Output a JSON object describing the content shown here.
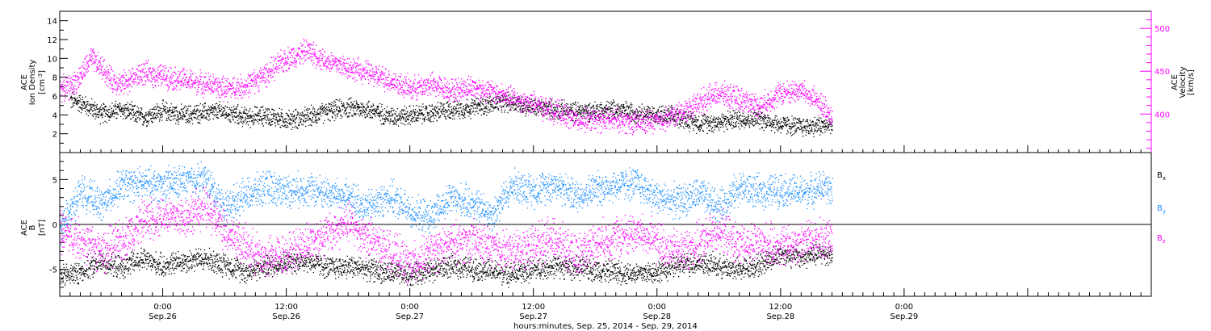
{
  "chart_data": {
    "type": "scatter",
    "xlabel": "hours:minutes, Sep. 25, 2014 - Sep. 29, 2014",
    "xlim_hours_from_Sep25_0000": [
      14,
      120
    ],
    "x_ticks": [
      {
        "time": "0:00",
        "date": "Sep.26",
        "hours": 24
      },
      {
        "time": "12:00",
        "date": "Sep.26",
        "hours": 36
      },
      {
        "time": "0:00",
        "date": "Sep.27",
        "hours": 48
      },
      {
        "time": "12:00",
        "date": "Sep.27",
        "hours": 60
      },
      {
        "time": "0:00",
        "date": "Sep.28",
        "hours": 72
      },
      {
        "time": "12:00",
        "date": "Sep.28",
        "hours": 84
      },
      {
        "time": "0:00",
        "date": "Sep.29",
        "hours": 96
      }
    ],
    "x_tick_positions_hours": [
      24,
      36,
      48,
      60,
      72,
      84,
      96,
      108,
      120
    ],
    "panels": [
      {
        "name": "top",
        "left_axis": {
          "label_lines": [
            "ACE",
            "Ion Density"
          ],
          "unit": "[cm",
          "unit_sup": "-3",
          "unit_end": "]",
          "ylim": [
            0,
            15
          ],
          "ticks": [
            "2",
            "4",
            "6",
            "8",
            "10",
            "12",
            "14"
          ],
          "color": "#000000"
        },
        "right_axis": {
          "label_lines": [
            "ACE",
            "Velocity",
            "[km/s]"
          ],
          "ylim": [
            355,
            520
          ],
          "ticks": [
            "400",
            "450",
            "500"
          ],
          "color": "#ff00ff"
        },
        "series": [
          {
            "color": "#000000",
            "axis": "left",
            "points_hours": [
              [
                15,
                5.6
              ],
              [
                16,
                5.3
              ],
              [
                18,
                4.2
              ],
              [
                20,
                4.6
              ],
              [
                22,
                3.8
              ],
              [
                24,
                4.5
              ],
              [
                26,
                4.0
              ],
              [
                28,
                4.3
              ],
              [
                30,
                4.4
              ],
              [
                32,
                3.8
              ],
              [
                34,
                4.0
              ],
              [
                36,
                3.5
              ],
              [
                38,
                3.8
              ],
              [
                40,
                4.4
              ],
              [
                42,
                4.8
              ],
              [
                44,
                4.6
              ],
              [
                46,
                3.9
              ],
              [
                48,
                4.0
              ],
              [
                50,
                4.2
              ],
              [
                52,
                4.6
              ],
              [
                54,
                4.8
              ],
              [
                56,
                5.2
              ],
              [
                58,
                5.4
              ],
              [
                60,
                4.8
              ],
              [
                62,
                4.6
              ],
              [
                64,
                4.4
              ],
              [
                66,
                4.5
              ],
              [
                68,
                4.6
              ],
              [
                70,
                4.3
              ],
              [
                72,
                4.0
              ],
              [
                74,
                3.8
              ],
              [
                76,
                3.2
              ],
              [
                78,
                3.3
              ],
              [
                80,
                3.6
              ],
              [
                82,
                3.6
              ],
              [
                84,
                3.0
              ],
              [
                86,
                2.8
              ],
              [
                88,
                2.9
              ],
              [
                89,
                3.0
              ]
            ]
          },
          {
            "color": "#ff00ff",
            "axis": "right",
            "points_hours": [
              [
                14,
                430
              ],
              [
                15,
                432
              ],
              [
                16,
                445
              ],
              [
                17,
                465
              ],
              [
                18,
                455
              ],
              [
                19,
                440
              ],
              [
                20,
                436
              ],
              [
                22,
                448
              ],
              [
                24,
                445
              ],
              [
                26,
                440
              ],
              [
                28,
                436
              ],
              [
                30,
                430
              ],
              [
                32,
                433
              ],
              [
                34,
                447
              ],
              [
                36,
                465
              ],
              [
                38,
                475
              ],
              [
                40,
                462
              ],
              [
                42,
                455
              ],
              [
                44,
                448
              ],
              [
                46,
                440
              ],
              [
                48,
                430
              ],
              [
                50,
                435
              ],
              [
                52,
                428
              ],
              [
                54,
                432
              ],
              [
                56,
                426
              ],
              [
                58,
                418
              ],
              [
                60,
                412
              ],
              [
                62,
                404
              ],
              [
                64,
                394
              ],
              [
                66,
                393
              ],
              [
                68,
                394
              ],
              [
                70,
                390
              ],
              [
                72,
                392
              ],
              [
                74,
                400
              ],
              [
                76,
                414
              ],
              [
                78,
                425
              ],
              [
                80,
                418
              ],
              [
                82,
                410
              ],
              [
                84,
                425
              ],
              [
                86,
                428
              ],
              [
                88,
                410
              ],
              [
                89,
                398
              ]
            ]
          }
        ]
      },
      {
        "name": "bottom",
        "left_axis": {
          "label_lines": [
            "ACE",
            "B"
          ],
          "unit": "[nT]",
          "ylim": [
            -8,
            8
          ],
          "ticks": [
            "-5",
            "0",
            "5"
          ],
          "zero_line": true,
          "color": "#000000"
        },
        "legend": [
          {
            "label": "B",
            "sub": "x",
            "color": "#000000"
          },
          {
            "label": "B",
            "sub": "y",
            "color": "#1e90ff"
          },
          {
            "label": "B",
            "sub": "z",
            "color": "#ff00ff"
          }
        ],
        "series": [
          {
            "name": "Bx",
            "color": "#000000",
            "points_hours": [
              [
                14,
                -5.8
              ],
              [
                16,
                -5.2
              ],
              [
                18,
                -4.2
              ],
              [
                20,
                -4.8
              ],
              [
                22,
                -3.8
              ],
              [
                24,
                -4.6
              ],
              [
                26,
                -4.0
              ],
              [
                28,
                -3.8
              ],
              [
                30,
                -4.4
              ],
              [
                32,
                -5.2
              ],
              [
                34,
                -4.6
              ],
              [
                36,
                -4.2
              ],
              [
                38,
                -4.0
              ],
              [
                40,
                -4.8
              ],
              [
                42,
                -4.6
              ],
              [
                44,
                -4.9
              ],
              [
                46,
                -5.4
              ],
              [
                48,
                -5.6
              ],
              [
                50,
                -5.0
              ],
              [
                52,
                -4.6
              ],
              [
                54,
                -4.8
              ],
              [
                56,
                -5.2
              ],
              [
                58,
                -5.5
              ],
              [
                60,
                -5.0
              ],
              [
                62,
                -4.6
              ],
              [
                64,
                -4.8
              ],
              [
                66,
                -5.0
              ],
              [
                68,
                -5.2
              ],
              [
                70,
                -5.4
              ],
              [
                72,
                -5.2
              ],
              [
                74,
                -4.5
              ],
              [
                76,
                -4.2
              ],
              [
                78,
                -4.6
              ],
              [
                80,
                -5.0
              ],
              [
                82,
                -4.4
              ],
              [
                84,
                -3.2
              ],
              [
                86,
                -3.6
              ],
              [
                88,
                -3.2
              ],
              [
                89,
                -3.4
              ]
            ]
          },
          {
            "name": "By",
            "color": "#1e90ff",
            "points_hours": [
              [
                14,
                -0.5
              ],
              [
                15,
                1.5
              ],
              [
                16,
                3.8
              ],
              [
                18,
                2.2
              ],
              [
                20,
                4.4
              ],
              [
                22,
                4.6
              ],
              [
                24,
                4.5
              ],
              [
                26,
                4.8
              ],
              [
                28,
                5.2
              ],
              [
                30,
                2.0
              ],
              [
                32,
                3.2
              ],
              [
                34,
                4.2
              ],
              [
                36,
                3.8
              ],
              [
                38,
                4.0
              ],
              [
                40,
                3.6
              ],
              [
                42,
                3.0
              ],
              [
                44,
                2.0
              ],
              [
                46,
                3.2
              ],
              [
                48,
                1.4
              ],
              [
                50,
                0.8
              ],
              [
                52,
                3.0
              ],
              [
                54,
                2.4
              ],
              [
                56,
                1.2
              ],
              [
                58,
                4.4
              ],
              [
                60,
                3.8
              ],
              [
                62,
                4.6
              ],
              [
                64,
                3.2
              ],
              [
                66,
                4.0
              ],
              [
                68,
                4.4
              ],
              [
                70,
                4.6
              ],
              [
                72,
                3.0
              ],
              [
                74,
                2.6
              ],
              [
                76,
                3.4
              ],
              [
                78,
                2.0
              ],
              [
                80,
                4.2
              ],
              [
                82,
                3.6
              ],
              [
                84,
                4.0
              ],
              [
                86,
                3.6
              ],
              [
                88,
                4.2
              ],
              [
                89,
                3.8
              ]
            ]
          },
          {
            "name": "Bz",
            "color": "#ff00ff",
            "points_hours": [
              [
                14,
                -0.8
              ],
              [
                16,
                -1.6
              ],
              [
                18,
                -3.0
              ],
              [
                20,
                -1.8
              ],
              [
                22,
                0.5
              ],
              [
                24,
                1.2
              ],
              [
                26,
                0.8
              ],
              [
                28,
                2.0
              ],
              [
                30,
                -0.5
              ],
              [
                32,
                -2.5
              ],
              [
                34,
                -3.8
              ],
              [
                36,
                -3.2
              ],
              [
                38,
                -2.0
              ],
              [
                40,
                -1.0
              ],
              [
                42,
                0.2
              ],
              [
                44,
                -1.5
              ],
              [
                46,
                -3.0
              ],
              [
                48,
                -4.5
              ],
              [
                50,
                -3.2
              ],
              [
                52,
                -2.0
              ],
              [
                54,
                -1.8
              ],
              [
                56,
                -2.6
              ],
              [
                58,
                -3.0
              ],
              [
                60,
                -2.2
              ],
              [
                62,
                -1.6
              ],
              [
                64,
                -3.5
              ],
              [
                66,
                -2.0
              ],
              [
                68,
                -1.4
              ],
              [
                70,
                -0.8
              ],
              [
                72,
                -2.0
              ],
              [
                74,
                -3.0
              ],
              [
                76,
                -2.2
              ],
              [
                78,
                -0.5
              ],
              [
                80,
                -2.4
              ],
              [
                82,
                -2.0
              ],
              [
                84,
                -2.5
              ],
              [
                86,
                -1.8
              ],
              [
                88,
                -1.6
              ],
              [
                89,
                -1.2
              ]
            ]
          }
        ]
      }
    ]
  }
}
